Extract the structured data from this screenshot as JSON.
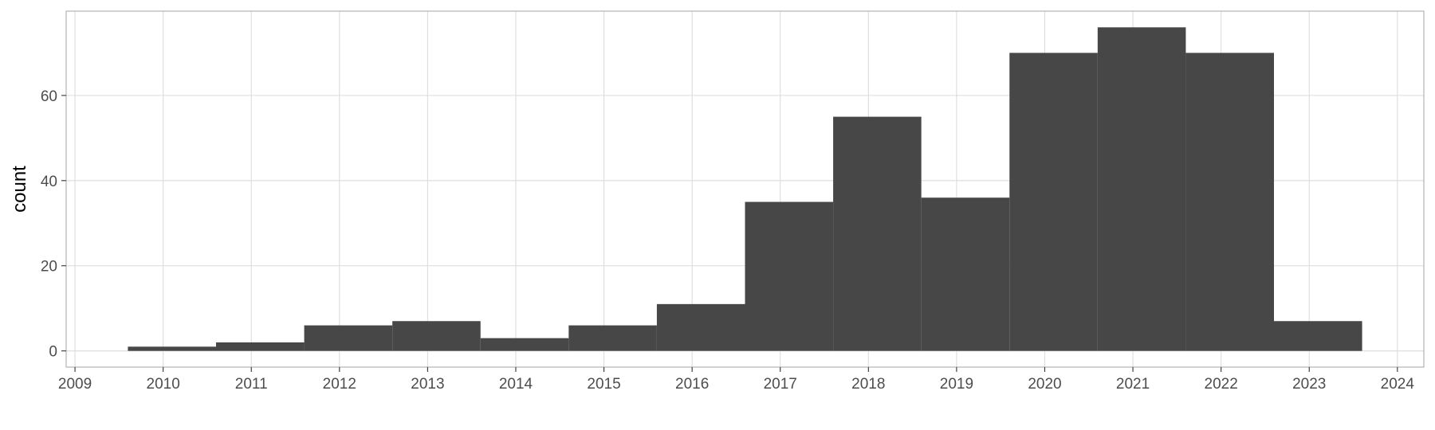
{
  "chart_data": {
    "type": "bar",
    "ylabel": "count",
    "xlabel": "",
    "title": "",
    "xlim": [
      2008.9,
      2024.3
    ],
    "ylim": [
      -3.8,
      79.8
    ],
    "x_ticks": [
      2009,
      2010,
      2011,
      2012,
      2013,
      2014,
      2015,
      2016,
      2017,
      2018,
      2019,
      2020,
      2021,
      2022,
      2023,
      2024
    ],
    "y_ticks": [
      0,
      20,
      40,
      60
    ],
    "bin_width": 1,
    "bins": [
      {
        "x": 2010.1,
        "value": 1
      },
      {
        "x": 2011.1,
        "value": 2
      },
      {
        "x": 2012.1,
        "value": 6
      },
      {
        "x": 2013.1,
        "value": 7
      },
      {
        "x": 2014.1,
        "value": 3
      },
      {
        "x": 2015.1,
        "value": 6
      },
      {
        "x": 2016.1,
        "value": 11
      },
      {
        "x": 2017.1,
        "value": 35
      },
      {
        "x": 2018.1,
        "value": 55
      },
      {
        "x": 2019.1,
        "value": 36
      },
      {
        "x": 2020.1,
        "value": 70
      },
      {
        "x": 2021.1,
        "value": 76
      },
      {
        "x": 2022.1,
        "value": 70
      },
      {
        "x": 2023.1,
        "value": 7
      }
    ],
    "grid": true,
    "bar_color": "#474747",
    "grid_color": "#dcdcdc",
    "panel_border_color": "#b3b3b3"
  }
}
